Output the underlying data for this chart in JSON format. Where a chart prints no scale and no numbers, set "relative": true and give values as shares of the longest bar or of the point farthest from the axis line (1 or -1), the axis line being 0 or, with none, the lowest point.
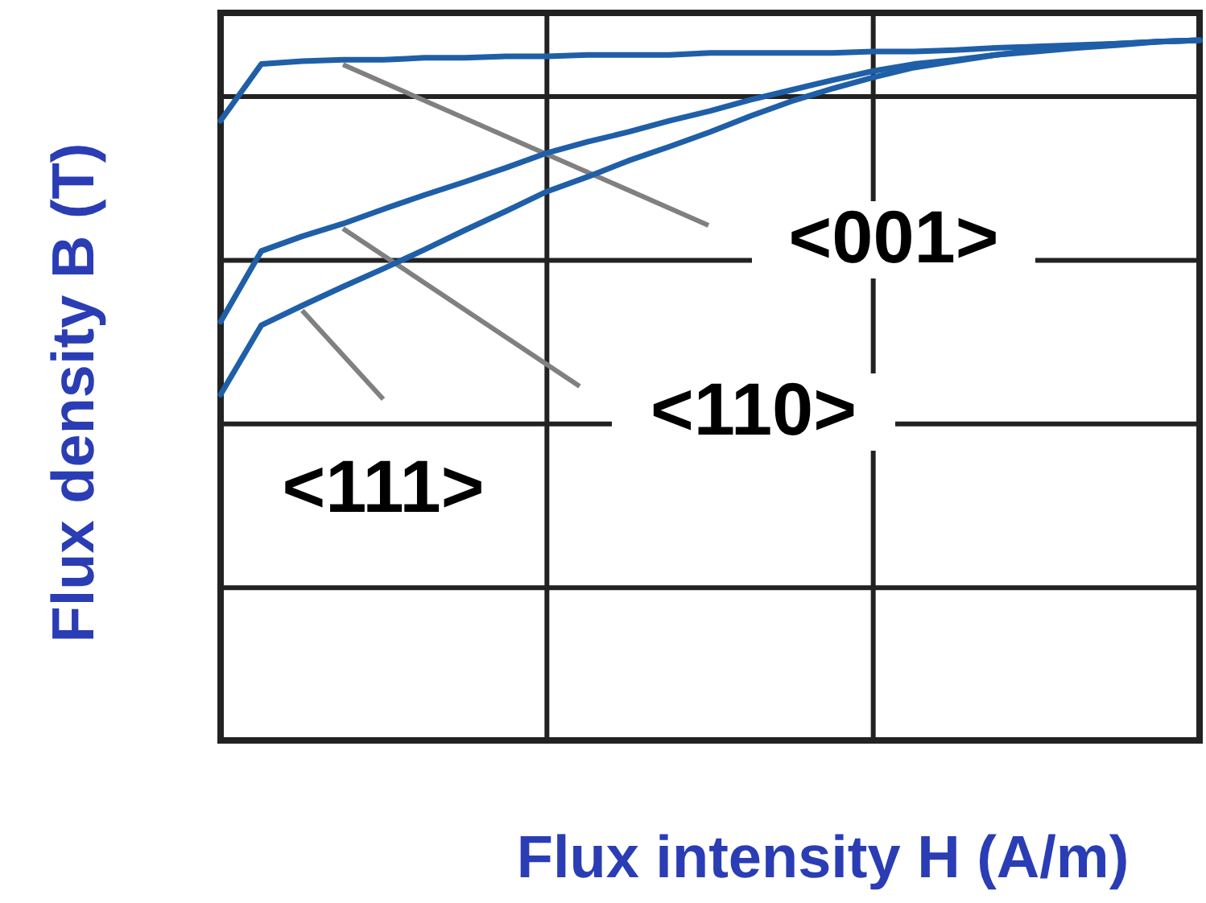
{
  "chart_data": {
    "type": "line",
    "relative": true,
    "xlabel": "Flux intensity H (A/m)",
    "ylabel": "Flux density B (T)",
    "categories": [
      null,
      null,
      null,
      null,
      null,
      null,
      null,
      null,
      null,
      null,
      null,
      null,
      null,
      null,
      null,
      null,
      null,
      null,
      null,
      null,
      null,
      null,
      null,
      null,
      null
    ],
    "grid": true,
    "marker": "none",
    "line_style": "solid",
    "series": [
      {
        "name": "<001>",
        "color": "#1f5fa8",
        "values": [
          0.885,
          0.966,
          0.97,
          0.972,
          0.972,
          0.975,
          0.975,
          0.977,
          0.977,
          0.979,
          0.979,
          0.979,
          0.982,
          0.982,
          0.982,
          0.982,
          0.984,
          0.984,
          0.986,
          0.989,
          0.991,
          0.993,
          0.995,
          0.998,
          1.0
        ]
      },
      {
        "name": "<110>",
        "color": "#1f5fa8",
        "values": [
          0.598,
          0.699,
          0.72,
          0.738,
          0.759,
          0.779,
          0.798,
          0.818,
          0.839,
          0.855,
          0.869,
          0.885,
          0.899,
          0.915,
          0.929,
          0.943,
          0.956,
          0.966,
          0.972,
          0.979,
          0.984,
          0.989,
          0.993,
          0.998,
          1.0
        ]
      },
      {
        "name": "<111>",
        "color": "#1f5fa8",
        "values": [
          0.494,
          0.593,
          0.621,
          0.648,
          0.674,
          0.701,
          0.729,
          0.756,
          0.784,
          0.805,
          0.828,
          0.848,
          0.869,
          0.892,
          0.913,
          0.931,
          0.947,
          0.961,
          0.97,
          0.979,
          0.986,
          0.991,
          0.995,
          0.998,
          1.0
        ]
      }
    ]
  }
}
